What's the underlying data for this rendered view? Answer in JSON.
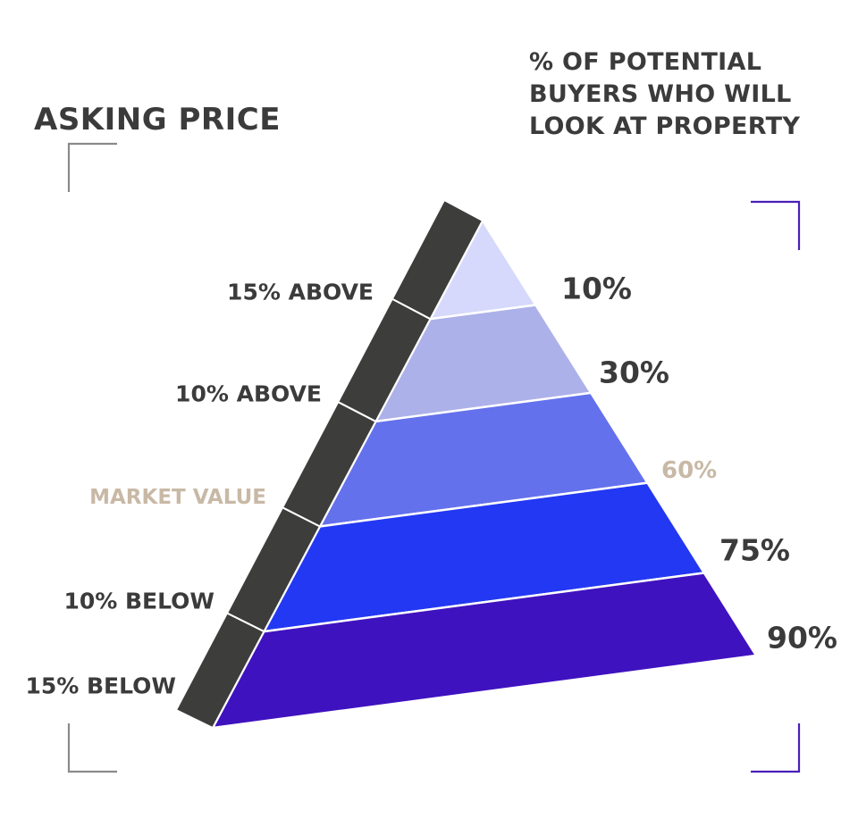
{
  "left_title": "ASKING PRICE",
  "right_title_lines": [
    "% OF POTENTIAL",
    "BUYERS WHO WILL",
    "LOOK AT PROPERTY"
  ],
  "colors": {
    "text": "#3b3b3b",
    "highlight_text": "#c8b9a6",
    "side_band": "#3d3d3b",
    "right_brackets": "#4a1fb8",
    "left_brackets": "#8a8a8a",
    "tiers": [
      "#d6d9fb",
      "#adb1e9",
      "#6471ec",
      "#2338f2",
      "#3f12bf"
    ]
  },
  "tiers": [
    {
      "price": "15% ABOVE",
      "buyers": "10%",
      "highlight": false
    },
    {
      "price": "10% ABOVE",
      "buyers": "30%",
      "highlight": false
    },
    {
      "price": "MARKET VALUE",
      "buyers": "60%",
      "highlight": true
    },
    {
      "price": "10% BELOW",
      "buyers": "75%",
      "highlight": false
    },
    {
      "price": "15% BELOW",
      "buyers": "90%",
      "highlight": false
    }
  ]
}
